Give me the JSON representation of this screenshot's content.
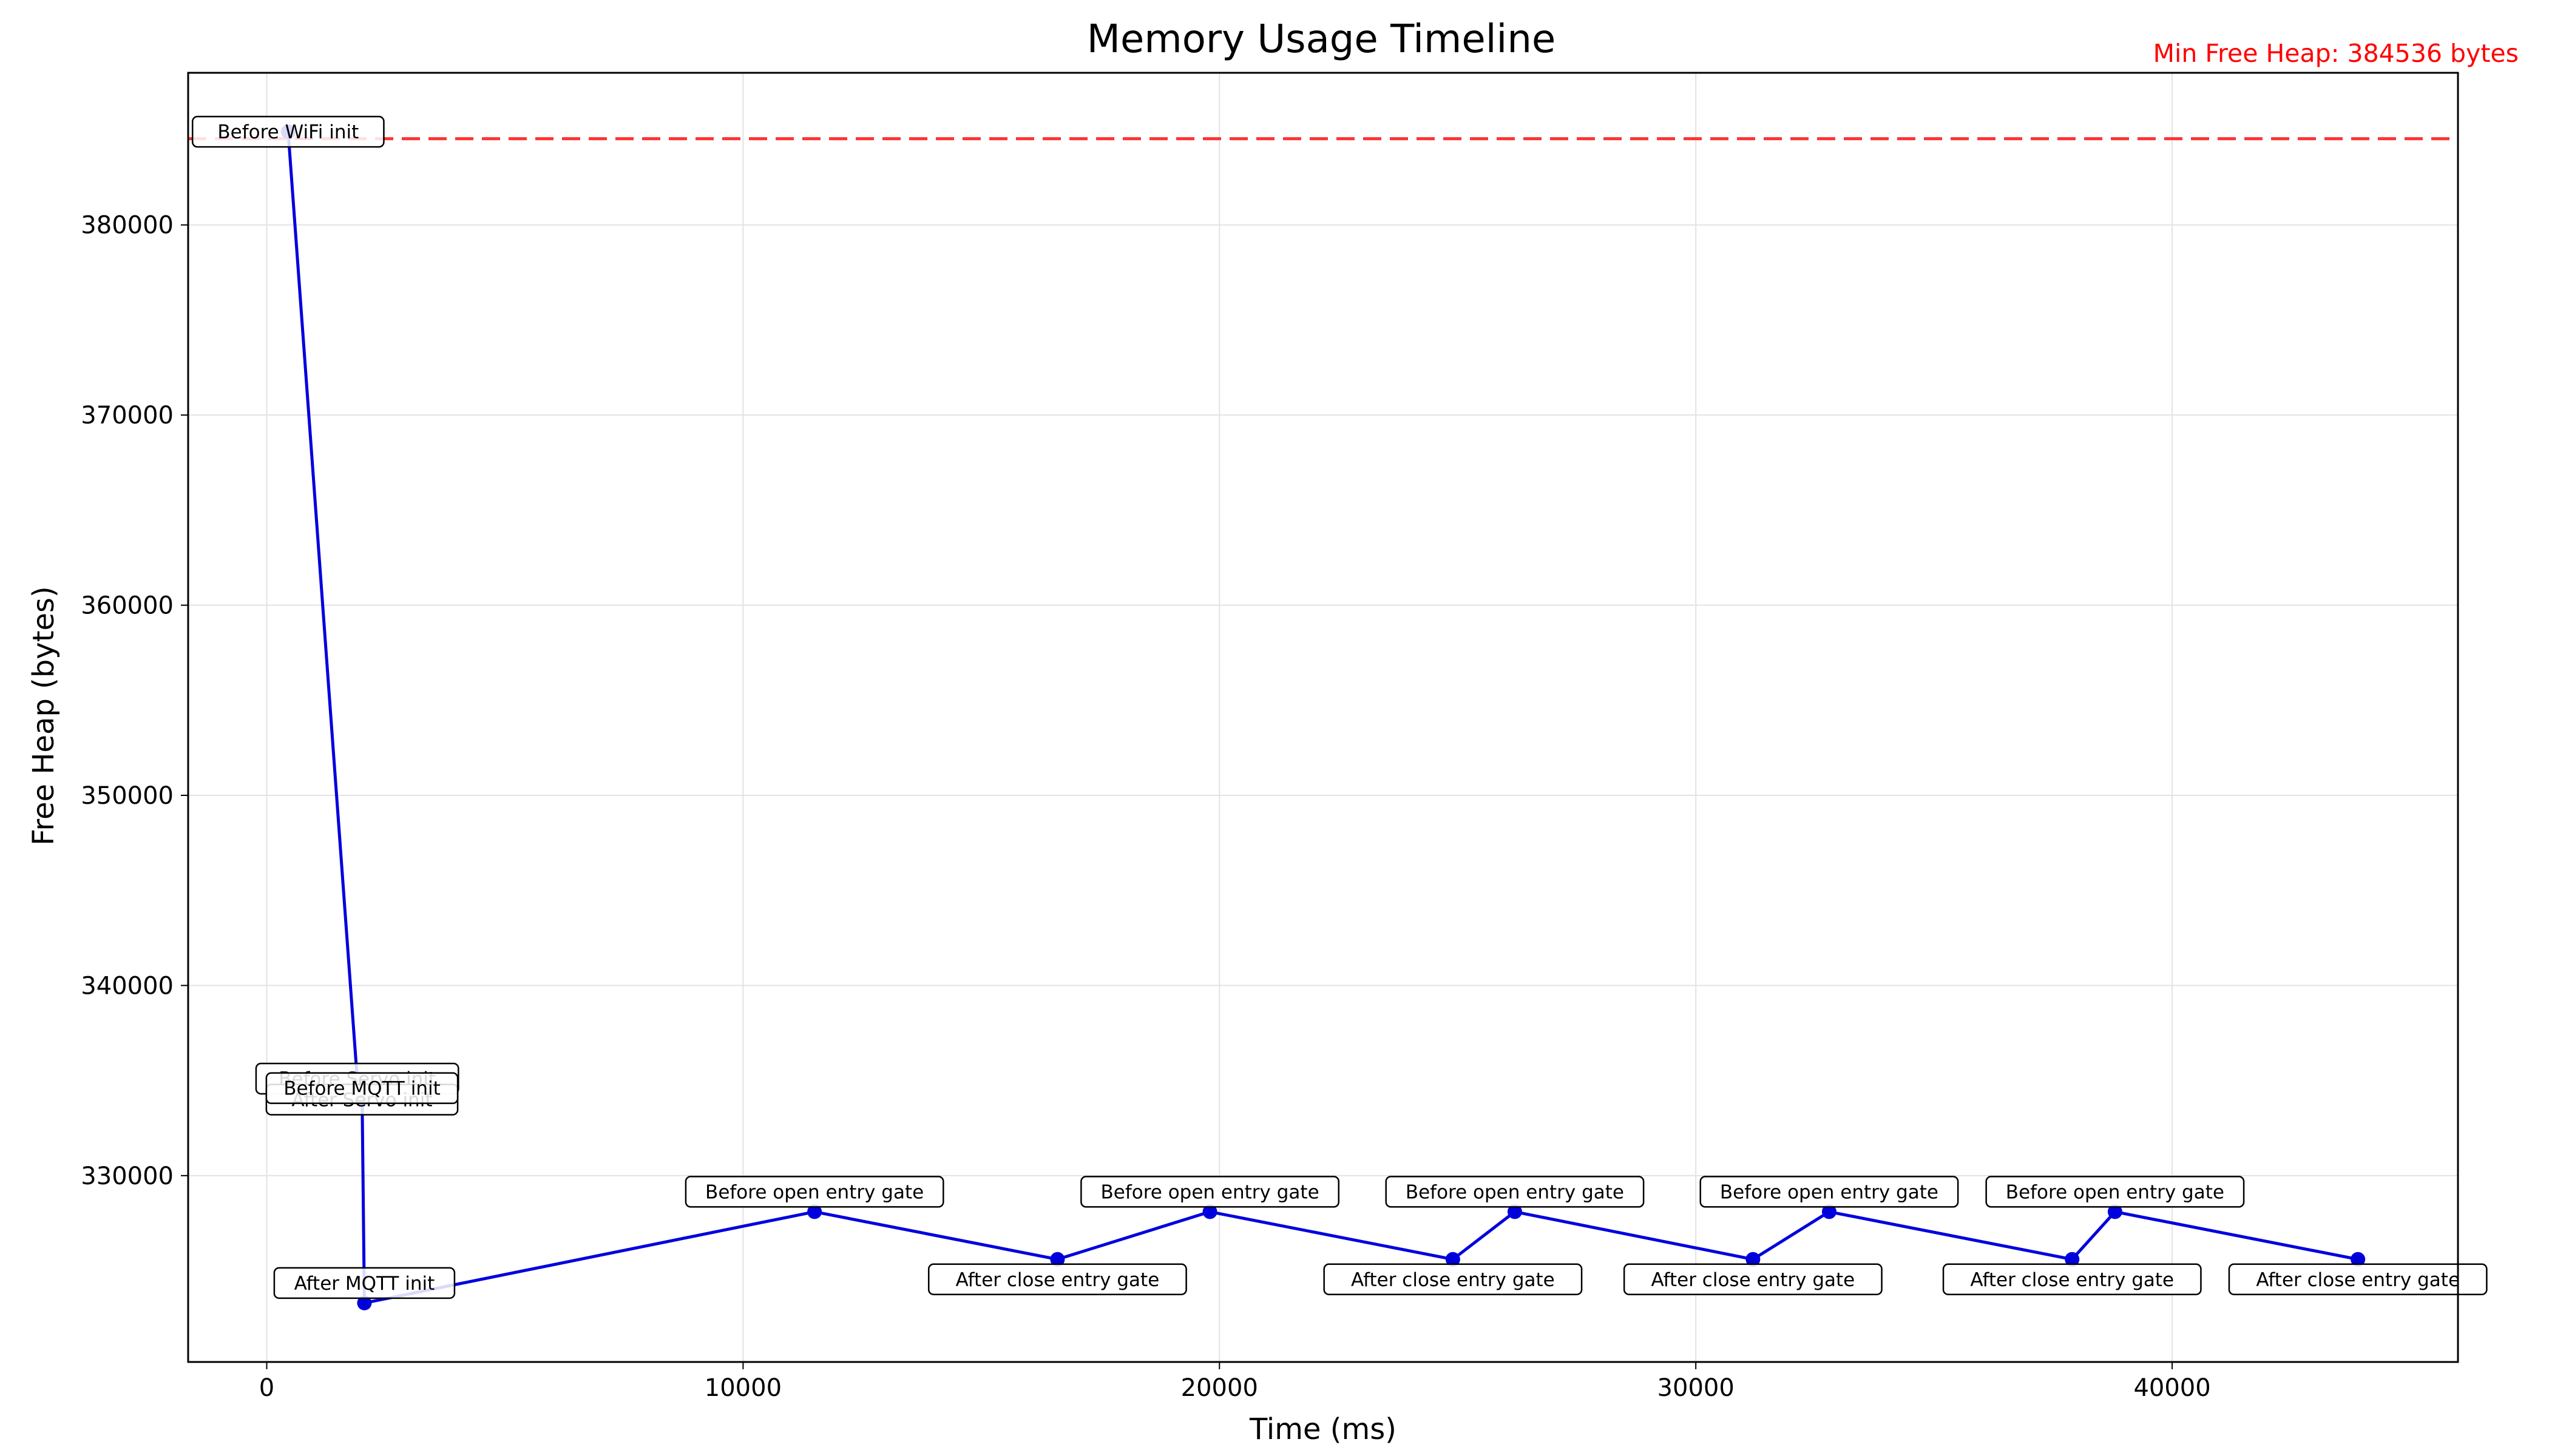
{
  "chart_data": {
    "type": "line",
    "title": "Memory Usage Timeline",
    "xlabel": "Time (ms)",
    "ylabel": "Free Heap (bytes)",
    "xlim": [
      -1650,
      46000
    ],
    "ylim": [
      320200,
      388000
    ],
    "xticks": [
      0,
      10000,
      20000,
      30000,
      40000
    ],
    "yticks": [
      330000,
      340000,
      350000,
      360000,
      370000,
      380000
    ],
    "grid": true,
    "series_color": "#0000dd",
    "reference_line": {
      "y": 384536,
      "color": "#ff3333",
      "style": "dashed",
      "label": "Min Free Heap: 384536 bytes"
    },
    "points": [
      {
        "x": 450,
        "y": 384900,
        "label": "Before WiFi init",
        "pos": "center"
      },
      {
        "x": 1900,
        "y": 335100,
        "label": "Before Servo init",
        "pos": "center"
      },
      {
        "x": 2000,
        "y": 334000,
        "label": "After Servo init",
        "pos": "center"
      },
      {
        "x": 2000,
        "y": 334600,
        "label": "Before MQTT init",
        "pos": "center"
      },
      {
        "x": 2050,
        "y": 323300,
        "label": "After MQTT init",
        "pos": "above"
      },
      {
        "x": 11500,
        "y": 328100,
        "label": "Before open entry gate",
        "pos": "above"
      },
      {
        "x": 16600,
        "y": 325600,
        "label": "After close entry gate",
        "pos": "below"
      },
      {
        "x": 19800,
        "y": 328100,
        "label": "Before open entry gate",
        "pos": "above"
      },
      {
        "x": 24900,
        "y": 325600,
        "label": "After close entry gate",
        "pos": "below"
      },
      {
        "x": 26200,
        "y": 328100,
        "label": "Before open entry gate",
        "pos": "above"
      },
      {
        "x": 31200,
        "y": 325600,
        "label": "After close entry gate",
        "pos": "below"
      },
      {
        "x": 32800,
        "y": 328100,
        "label": "Before open entry gate",
        "pos": "above"
      },
      {
        "x": 37900,
        "y": 325600,
        "label": "After close entry gate",
        "pos": "below"
      },
      {
        "x": 38800,
        "y": 328100,
        "label": "Before open entry gate",
        "pos": "above"
      },
      {
        "x": 43900,
        "y": 325600,
        "label": "After close entry gate",
        "pos": "below"
      }
    ]
  }
}
